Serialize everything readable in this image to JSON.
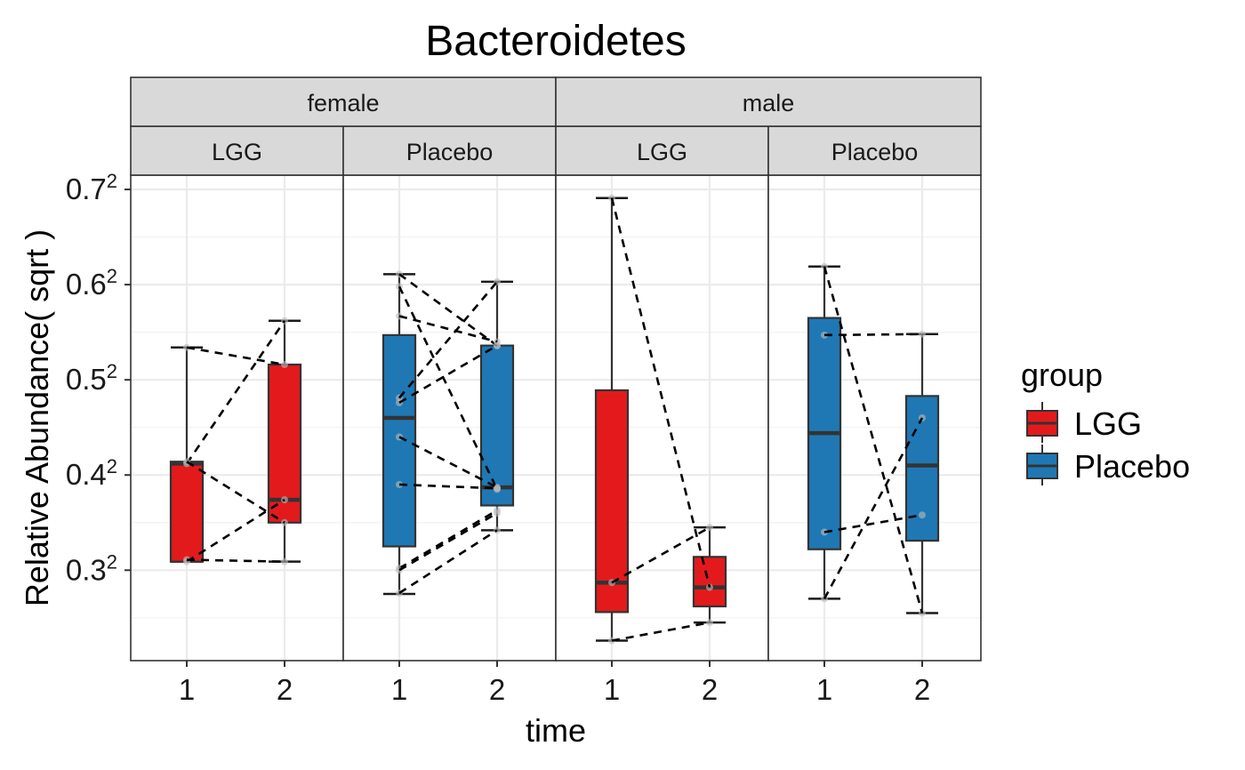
{
  "chart_data": {
    "type": "box",
    "title": "Bacteroidetes",
    "xlabel": "time",
    "ylabel": "Relative Abundance( sqrt )",
    "y_scale": "sqrt",
    "y_tick_base": [
      "0.3",
      "0.4",
      "0.5",
      "0.6",
      "0.7"
    ],
    "y_tick_values": [
      0.3,
      0.4,
      0.5,
      0.6,
      0.7
    ],
    "y_tick_exponent": "2",
    "ylim_sqrt": [
      0.205,
      0.715
    ],
    "x_categories": [
      "1",
      "2"
    ],
    "grid": true,
    "legend": {
      "title": "group",
      "position": "right",
      "entries": [
        {
          "label": "LGG",
          "color": "#E31A1C"
        },
        {
          "label": "Placebo",
          "color": "#1F78B4"
        }
      ]
    },
    "sex_strips": [
      "female",
      "male"
    ],
    "panels": [
      {
        "sex": "female",
        "group": "LGG",
        "color": "#E31A1C",
        "boxes": [
          {
            "time": "1",
            "whisker_low": 0.309,
            "q1": 0.309,
            "median": 0.412,
            "q3": 0.414,
            "whisker_high": 0.534
          },
          {
            "time": "2",
            "whisker_low": 0.309,
            "q1": 0.35,
            "median": 0.374,
            "q3": 0.516,
            "whisker_high": 0.562
          }
        ],
        "pairs": [
          [
            0.534,
            0.516
          ],
          [
            0.412,
            0.562
          ],
          [
            0.414,
            0.35
          ],
          [
            0.309,
            0.374
          ],
          [
            0.311,
            0.309
          ]
        ]
      },
      {
        "sex": "female",
        "group": "Placebo",
        "color": "#1F78B4",
        "boxes": [
          {
            "time": "1",
            "whisker_low": 0.275,
            "q1": 0.325,
            "median": 0.46,
            "q3": 0.547,
            "whisker_high": 0.611
          },
          {
            "time": "2",
            "whisker_low": 0.342,
            "q1": 0.368,
            "median": 0.387,
            "q3": 0.536,
            "whisker_high": 0.603
          }
        ],
        "pairs": [
          [
            0.611,
            0.536
          ],
          [
            0.598,
            0.385
          ],
          [
            0.567,
            0.54
          ],
          [
            0.481,
            0.603
          ],
          [
            0.476,
            0.536
          ],
          [
            0.44,
            0.387
          ],
          [
            0.39,
            0.386
          ],
          [
            0.302,
            0.363
          ],
          [
            0.3,
            0.36
          ],
          [
            0.276,
            0.342
          ]
        ]
      },
      {
        "sex": "male",
        "group": "LGG",
        "color": "#E31A1C",
        "boxes": [
          {
            "time": "1",
            "whisker_low": 0.226,
            "q1": 0.256,
            "median": 0.287,
            "q3": 0.489,
            "whisker_high": 0.691
          },
          {
            "time": "2",
            "whisker_low": 0.245,
            "q1": 0.262,
            "median": 0.282,
            "q3": 0.314,
            "whisker_high": 0.345
          }
        ],
        "pairs": [
          [
            0.691,
            0.282
          ],
          [
            0.287,
            0.345
          ],
          [
            0.226,
            0.245
          ]
        ]
      },
      {
        "sex": "male",
        "group": "Placebo",
        "color": "#1F78B4",
        "boxes": [
          {
            "time": "1",
            "whisker_low": 0.27,
            "q1": 0.322,
            "median": 0.444,
            "q3": 0.565,
            "whisker_high": 0.619
          },
          {
            "time": "2",
            "whisker_low": 0.255,
            "q1": 0.331,
            "median": 0.41,
            "q3": 0.483,
            "whisker_high": 0.548
          }
        ],
        "pairs": [
          [
            0.619,
            0.255
          ],
          [
            0.547,
            0.548
          ],
          [
            0.34,
            0.358
          ],
          [
            0.27,
            0.46
          ]
        ]
      }
    ]
  }
}
